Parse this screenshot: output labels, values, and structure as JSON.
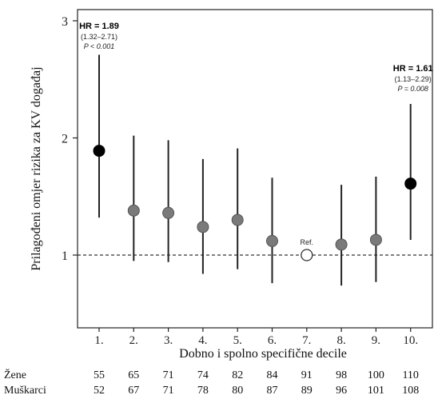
{
  "chart_data": {
    "type": "scatter",
    "subtype": "point-with-error-bars",
    "ylabel": "Prilagođeni omjer rizika za KV događaj",
    "xlabel": "Dobno i spolno specifične decile",
    "categories": [
      "1.",
      "2.",
      "3.",
      "4.",
      "5.",
      "6.",
      "7.",
      "8.",
      "9.",
      "10."
    ],
    "y_ticks": [
      "1",
      "2",
      "3"
    ],
    "ylim": [
      0.4,
      3.05
    ],
    "reference_line": 1,
    "points": [
      {
        "hr": 1.89,
        "lo": 1.32,
        "hi": 2.71,
        "style": "black"
      },
      {
        "hr": 1.38,
        "lo": 0.95,
        "hi": 2.02,
        "style": "gray"
      },
      {
        "hr": 1.36,
        "lo": 0.94,
        "hi": 1.98,
        "style": "gray"
      },
      {
        "hr": 1.24,
        "lo": 0.84,
        "hi": 1.82,
        "style": "gray"
      },
      {
        "hr": 1.3,
        "lo": 0.88,
        "hi": 1.91,
        "style": "gray"
      },
      {
        "hr": 1.12,
        "lo": 0.76,
        "hi": 1.66,
        "style": "gray"
      },
      {
        "hr": 1.0,
        "lo": null,
        "hi": null,
        "style": "reference"
      },
      {
        "hr": 1.09,
        "lo": 0.74,
        "hi": 1.6,
        "style": "gray"
      },
      {
        "hr": 1.13,
        "lo": 0.77,
        "hi": 1.67,
        "style": "gray"
      },
      {
        "hr": 1.61,
        "lo": 1.13,
        "hi": 2.29,
        "style": "black"
      }
    ],
    "annotations": [
      {
        "target": 0,
        "hr": "HR = 1.89",
        "ci": "(1.32–2.71)",
        "p": "P < 0.001"
      },
      {
        "target": 9,
        "hr": "HR = 1.61",
        "ci": "(1.13–2.29)",
        "p": "P = 0.008"
      }
    ],
    "reference_label": "Ref.",
    "colors": {
      "highlight": "#000000",
      "normal": "#7a7a7a",
      "reference": "#ffffff",
      "line": "#222222"
    }
  },
  "counts_table": {
    "rows": [
      {
        "label": "Žene",
        "values": [
          "55",
          "65",
          "71",
          "74",
          "82",
          "84",
          "91",
          "98",
          "100",
          "110"
        ]
      },
      {
        "label": "Muškarci",
        "values": [
          "52",
          "67",
          "71",
          "78",
          "80",
          "87",
          "89",
          "96",
          "101",
          "108"
        ]
      }
    ]
  }
}
